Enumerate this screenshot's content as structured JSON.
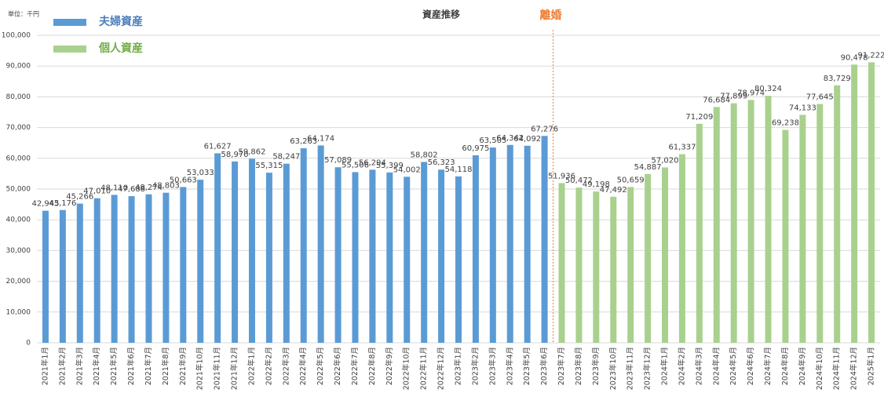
{
  "chart_data": {
    "type": "bar",
    "title": "資産推移",
    "unit_label": "単位：千円",
    "annotation": "離婚",
    "categories": [
      "2021年1月",
      "2021年2月",
      "2021年3月",
      "2021年4月",
      "2021年5月",
      "2021年6月",
      "2021年7月",
      "2021年8月",
      "2021年9月",
      "2021年10月",
      "2021年11月",
      "2021年12月",
      "2022年1月",
      "2022年2月",
      "2022年3月",
      "2022年4月",
      "2022年5月",
      "2022年6月",
      "2022年7月",
      "2022年8月",
      "2022年9月",
      "2022年10月",
      "2022年11月",
      "2022年12月",
      "2023年1月",
      "2023年2月",
      "2023年3月",
      "2023年4月",
      "2023年5月",
      "2023年6月",
      "2023年7月",
      "2023年8月",
      "2023年9月",
      "2023年10月",
      "2023年11月",
      "2023年12月",
      "2024年1月",
      "2024年2月",
      "2024年3月",
      "2024年4月",
      "2024年5月",
      "2024年6月",
      "2024年7月",
      "2024年8月",
      "2024年9月",
      "2024年10月",
      "2024年11月",
      "2024年12月",
      "2025年1月"
    ],
    "series": [
      {
        "name": "夫婦資産",
        "color": "#5b9bd5",
        "values": [
          42945,
          43176,
          45266,
          47010,
          48110,
          47688,
          48274,
          48803,
          50663,
          53033,
          61627,
          58970,
          59862,
          55315,
          58247,
          63263,
          64174,
          57089,
          55506,
          56294,
          55399,
          54002,
          58802,
          56323,
          54118,
          60975,
          63505,
          64342,
          64092,
          67276,
          null,
          null,
          null,
          null,
          null,
          null,
          null,
          null,
          null,
          null,
          null,
          null,
          null,
          null,
          null,
          null,
          null,
          null,
          null
        ],
        "value_labels": [
          "42,945",
          "43,176",
          "45,266",
          "47,010",
          "48,110",
          "47,688",
          "48,274",
          "48,803",
          "50,663",
          "53,033",
          "61,627",
          "58,970",
          "59,862",
          "55,315",
          "58,247",
          "63,263",
          "64,174",
          "57,089",
          "55,506",
          "56,294",
          "55,399",
          "54,002",
          "58,802",
          "56,323",
          "54,118",
          "60,975",
          "63,505",
          "64,342",
          "64,092",
          "67,276",
          null,
          null,
          null,
          null,
          null,
          null,
          null,
          null,
          null,
          null,
          null,
          null,
          null,
          null,
          null,
          null,
          null,
          null,
          null
        ]
      },
      {
        "name": "個人資産",
        "color": "#a9d18e",
        "values": [
          null,
          null,
          null,
          null,
          null,
          null,
          null,
          null,
          null,
          null,
          null,
          null,
          null,
          null,
          null,
          null,
          null,
          null,
          null,
          null,
          null,
          null,
          null,
          null,
          null,
          null,
          null,
          null,
          null,
          null,
          51936,
          50472,
          49198,
          47492,
          50659,
          54887,
          57020,
          61337,
          71209,
          76684,
          77899,
          78974,
          80324,
          69238,
          74133,
          77645,
          83729,
          90478,
          91222
        ],
        "value_labels": [
          null,
          null,
          null,
          null,
          null,
          null,
          null,
          null,
          null,
          null,
          null,
          null,
          null,
          null,
          null,
          null,
          null,
          null,
          null,
          null,
          null,
          null,
          null,
          null,
          null,
          null,
          null,
          null,
          null,
          null,
          "51,936",
          "50,472",
          "49,198",
          "47,492",
          "50,659",
          "54,887",
          "57,020",
          "61,337",
          "71,209",
          "76,684",
          "77,899",
          "78,974",
          "80,324",
          "69,238",
          "74,133",
          "77,645",
          "83,729",
          "90,478",
          "91,222"
        ]
      }
    ],
    "ylim": [
      0,
      100000
    ],
    "yticks": [
      0,
      {
        "value": 10000,
        "label": "10,000"
      },
      {
        "value": 20000,
        "label": "20,000"
      },
      {
        "value": 30000,
        "label": "30,000"
      },
      {
        "value": 40000,
        "label": "40,000"
      },
      {
        "value": 50000,
        "label": "50,000"
      },
      {
        "value": 60000,
        "label": "60,000"
      },
      {
        "value": 70000,
        "label": "70,000"
      },
      {
        "value": 80000,
        "label": "80,000"
      },
      {
        "value": 90000,
        "label": "90,000"
      },
      {
        "value": 100000,
        "label": "100,000"
      }
    ],
    "grid": true,
    "legend": "top-left"
  }
}
